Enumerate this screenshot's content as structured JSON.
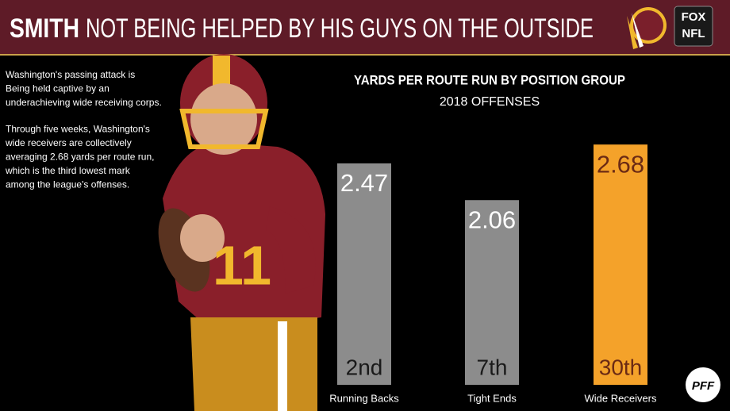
{
  "header": {
    "title_bold": "SMITH",
    "title_rest": "NOT BEING HELPED BY HIS GUYS ON THE OUTSIDE",
    "logo_fox": "FOX",
    "logo_nfl": "NFL"
  },
  "intro": {
    "paragraph_1": [
      "Washington's passing attack is",
      "Being held captive by an",
      "underachieving wide receiving corps."
    ],
    "paragraph_2": [
      "Through five weeks, Washington's",
      "wide receivers are collectively",
      "averaging 2.68 yards per route run,",
      "which is the third lowest mark",
      "among the league's offenses."
    ]
  },
  "chart_data": {
    "type": "bar",
    "title": "YARDS PER ROUTE RUN BY POSITION GROUP",
    "subtitle": "2018 OFFENSES",
    "categories": [
      "Running Backs",
      "Tight Ends",
      "Wide Receivers"
    ],
    "values": [
      2.47,
      2.06,
      2.68
    ],
    "ranks": [
      "2nd",
      "7th",
      "30th"
    ],
    "colors": [
      "#8c8c8c",
      "#8c8c8c",
      "#f4a22a"
    ],
    "label_colors": [
      "#ffffff",
      "#ffffff",
      "#6b2a14"
    ],
    "ylim": [
      0,
      3
    ]
  },
  "footer": {
    "logo": "PFF"
  }
}
